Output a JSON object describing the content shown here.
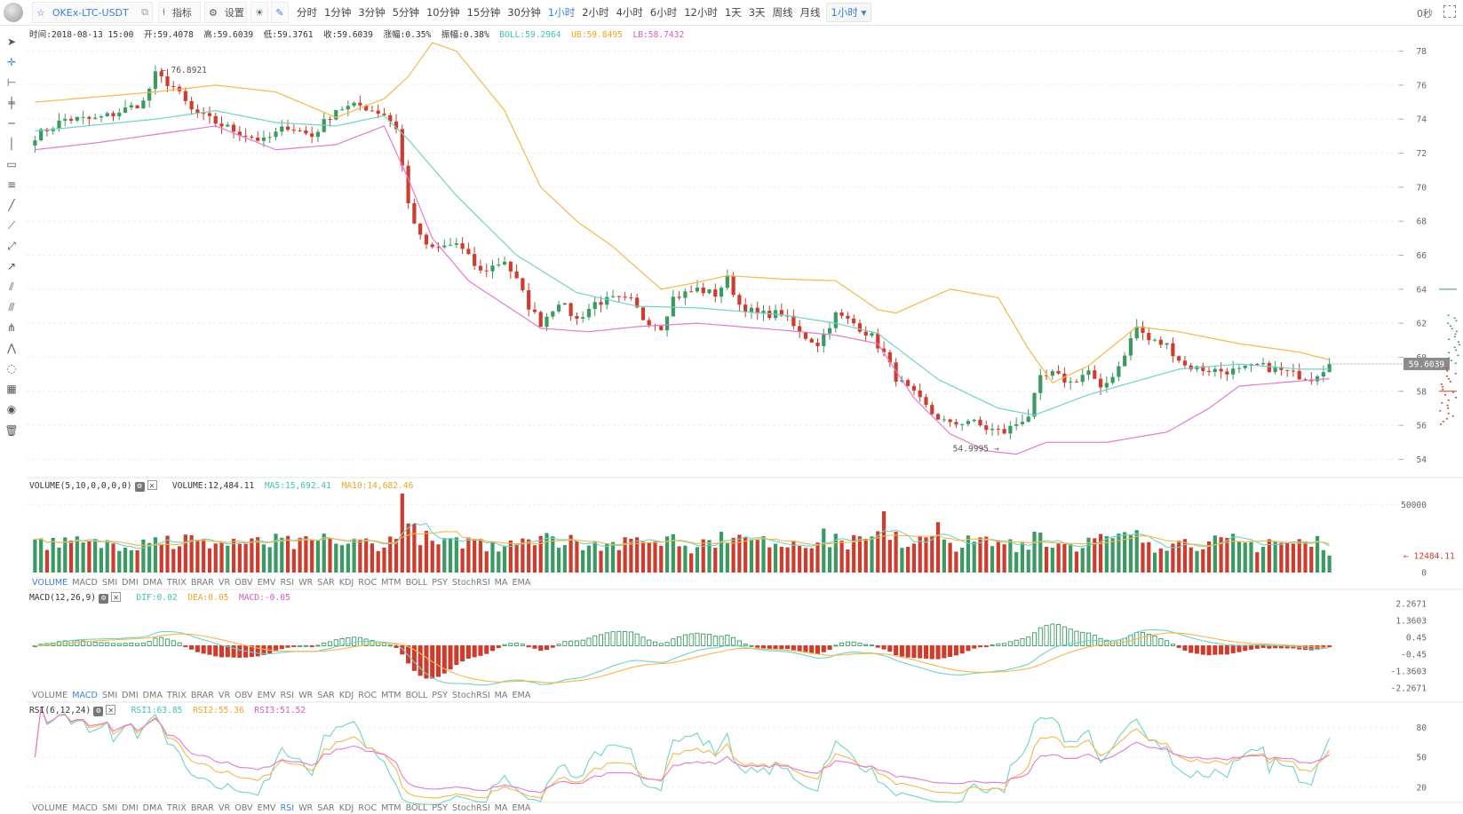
{
  "toolbar": {
    "symbol": "OKEx-LTC-USDT",
    "indicators_label": "指标",
    "settings_label": "设置",
    "periods": [
      "分时",
      "1分钟",
      "3分钟",
      "5分钟",
      "10分钟",
      "15分钟",
      "30分钟",
      "1小时",
      "2小时",
      "4小时",
      "6小时",
      "12小时",
      "1天",
      "3天",
      "周线",
      "月线"
    ],
    "active_period": "1小时",
    "period_select": "1小时",
    "countdown": "0秒"
  },
  "info": {
    "time": "时间:2018-08-13 15:00",
    "open": "开:59.4078",
    "high": "高:59.6039",
    "low": "低:59.3761",
    "close": "收:59.6039",
    "change": "涨幅:0.35%",
    "amplitude": "振幅:0.38%",
    "boll": "BOLL:59.2964",
    "ub": "UB:59.8495",
    "lb": "LB:58.7432"
  },
  "price_axis": {
    "ticks": [
      "78",
      "76",
      "74",
      "72",
      "70",
      "68",
      "66",
      "64",
      "62",
      "60",
      "58",
      "56",
      "54"
    ],
    "last_price": "59.6039",
    "max_label": "76.8921",
    "min_label": "54.9995"
  },
  "volume": {
    "title": "VOLUME(5,10,0,0,0,0)",
    "value": "VOLUME:12,484.11",
    "ma5": "MA5:15,692.41",
    "ma10": "MA10:14,682.46",
    "ticks": [
      "50000",
      "0"
    ],
    "last_label": "12484.11"
  },
  "macd": {
    "title": "MACD(12,26,9)",
    "dif": "DIF:0.02",
    "dea": "DEA:0.05",
    "macd": "MACD:-0.05",
    "ticks": [
      "2.2671",
      "1.3603",
      "0.45",
      "-0.45",
      "-1.3603",
      "-2.2671"
    ]
  },
  "rsi": {
    "title": "RSI(6,12,24)",
    "rsi1": "RSI1:63.85",
    "rsi2": "RSI2:55.36",
    "rsi3": "RSI3:51.52",
    "ticks": [
      "80",
      "50",
      "20"
    ]
  },
  "indicator_tabs": [
    "VOLUME",
    "MACD",
    "SMI",
    "DMI",
    "DMA",
    "TRIX",
    "BRAR",
    "VR",
    "OBV",
    "EMV",
    "RSI",
    "WR",
    "SAR",
    "KDJ",
    "ROC",
    "MTM",
    "BOLL",
    "PSY",
    "StochRSI",
    "MA",
    "EMA"
  ],
  "colors": {
    "up": "#3a9a62",
    "down": "#cf3b2c",
    "boll_mid": "#6fd3c8",
    "boll_upper": "#f5b84a",
    "boll_lower": "#e37ad0",
    "accent": "#3b7fd8"
  },
  "chart_data": {
    "type": "candlestick",
    "symbol": "OKEx-LTC-USDT",
    "interval": "1小时",
    "ylim": [
      53.5,
      78.5
    ],
    "close_path": [
      [
        0,
        73.0
      ],
      [
        5,
        74.0
      ],
      [
        10,
        74.0
      ],
      [
        13,
        74.3
      ],
      [
        18,
        75.0
      ],
      [
        20,
        76.6
      ],
      [
        23,
        75.9
      ],
      [
        26,
        74.5
      ],
      [
        30,
        73.8
      ],
      [
        34,
        73.2
      ],
      [
        38,
        72.7
      ],
      [
        42,
        73.6
      ],
      [
        46,
        73.0
      ],
      [
        50,
        74.6
      ],
      [
        54,
        74.8
      ],
      [
        58,
        74.3
      ],
      [
        60,
        73.5
      ],
      [
        62,
        69.0
      ],
      [
        64,
        67.0
      ],
      [
        66,
        66.3
      ],
      [
        70,
        66.7
      ],
      [
        74,
        65.0
      ],
      [
        78,
        65.7
      ],
      [
        80,
        64.5
      ],
      [
        82,
        63.0
      ],
      [
        84,
        62.0
      ],
      [
        87,
        63.3
      ],
      [
        90,
        62.2
      ],
      [
        93,
        63.2
      ],
      [
        96,
        63.4
      ],
      [
        99,
        63.3
      ],
      [
        101,
        62.3
      ],
      [
        104,
        61.8
      ],
      [
        106,
        63.5
      ],
      [
        110,
        64.0
      ],
      [
        113,
        63.7
      ],
      [
        115,
        64.6
      ],
      [
        117,
        63.1
      ],
      [
        120,
        62.5
      ],
      [
        124,
        62.6
      ],
      [
        127,
        61.4
      ],
      [
        130,
        60.8
      ],
      [
        133,
        62.5
      ],
      [
        136,
        62.0
      ],
      [
        139,
        61.2
      ],
      [
        141,
        60.2
      ],
      [
        143,
        58.8
      ],
      [
        146,
        57.8
      ],
      [
        149,
        56.7
      ],
      [
        152,
        56.0
      ],
      [
        155,
        56.3
      ],
      [
        158,
        55.8
      ],
      [
        161,
        55.6
      ],
      [
        165,
        56.6
      ],
      [
        167,
        58.7
      ],
      [
        169,
        59.0
      ],
      [
        172,
        58.5
      ],
      [
        175,
        59.2
      ],
      [
        177,
        58.0
      ],
      [
        180,
        59.5
      ],
      [
        183,
        61.8
      ],
      [
        185,
        61.0
      ],
      [
        188,
        60.7
      ],
      [
        191,
        59.5
      ],
      [
        194,
        59.3
      ],
      [
        197,
        59.2
      ],
      [
        200,
        59.2
      ],
      [
        203,
        59.5
      ],
      [
        206,
        59.3
      ],
      [
        209,
        59.0
      ],
      [
        212,
        58.8
      ],
      [
        215,
        59.6039
      ]
    ],
    "annotations": {
      "max": 76.8921,
      "min": 54.9995,
      "last": 59.6039
    },
    "bands": {
      "upper": [
        [
          0,
          75.0
        ],
        [
          20,
          75.6
        ],
        [
          30,
          76.0
        ],
        [
          40,
          75.6
        ],
        [
          50,
          74.1
        ],
        [
          58,
          75.2
        ],
        [
          62,
          76.5
        ],
        [
          66,
          78.5
        ],
        [
          70,
          78.0
        ],
        [
          78,
          74.5
        ],
        [
          84,
          70.0
        ],
        [
          90,
          68.0
        ],
        [
          96,
          66.5
        ],
        [
          104,
          64.0
        ],
        [
          110,
          64.4
        ],
        [
          115,
          64.8
        ],
        [
          124,
          64.6
        ],
        [
          133,
          64.5
        ],
        [
          140,
          62.8
        ],
        [
          143,
          62.6
        ],
        [
          152,
          64.0
        ],
        [
          160,
          63.5
        ],
        [
          165,
          60.5
        ],
        [
          169,
          58.5
        ],
        [
          175,
          59.5
        ],
        [
          183,
          61.8
        ],
        [
          190,
          61.5
        ],
        [
          200,
          60.8
        ],
        [
          210,
          60.3
        ],
        [
          215,
          59.85
        ]
      ],
      "middle": [
        [
          0,
          73.3
        ],
        [
          20,
          74.0
        ],
        [
          30,
          74.5
        ],
        [
          40,
          73.8
        ],
        [
          50,
          73.6
        ],
        [
          58,
          74.2
        ],
        [
          62,
          72.8
        ],
        [
          70,
          69.5
        ],
        [
          80,
          66.0
        ],
        [
          90,
          63.8
        ],
        [
          100,
          63.0
        ],
        [
          110,
          62.9
        ],
        [
          124,
          62.5
        ],
        [
          133,
          62.0
        ],
        [
          140,
          61.4
        ],
        [
          150,
          58.7
        ],
        [
          160,
          57.0
        ],
        [
          166,
          56.6
        ],
        [
          175,
          57.8
        ],
        [
          183,
          58.6
        ],
        [
          190,
          59.3
        ],
        [
          200,
          59.6
        ],
        [
          210,
          59.3
        ],
        [
          215,
          59.3
        ]
      ],
      "lower": [
        [
          0,
          72.2
        ],
        [
          10,
          72.6
        ],
        [
          20,
          73.1
        ],
        [
          30,
          73.6
        ],
        [
          40,
          72.2
        ],
        [
          50,
          72.5
        ],
        [
          58,
          73.6
        ],
        [
          62,
          70.5
        ],
        [
          66,
          67.0
        ],
        [
          72,
          64.5
        ],
        [
          84,
          61.7
        ],
        [
          92,
          61.5
        ],
        [
          100,
          61.8
        ],
        [
          110,
          62.0
        ],
        [
          124,
          61.6
        ],
        [
          133,
          61.3
        ],
        [
          140,
          60.8
        ],
        [
          146,
          57.6
        ],
        [
          152,
          55.5
        ],
        [
          158,
          54.5
        ],
        [
          163,
          54.3
        ],
        [
          168,
          55.0
        ],
        [
          178,
          55.0
        ],
        [
          188,
          55.6
        ],
        [
          195,
          57.0
        ],
        [
          200,
          58.3
        ],
        [
          210,
          58.6
        ],
        [
          215,
          58.74
        ]
      ]
    }
  }
}
